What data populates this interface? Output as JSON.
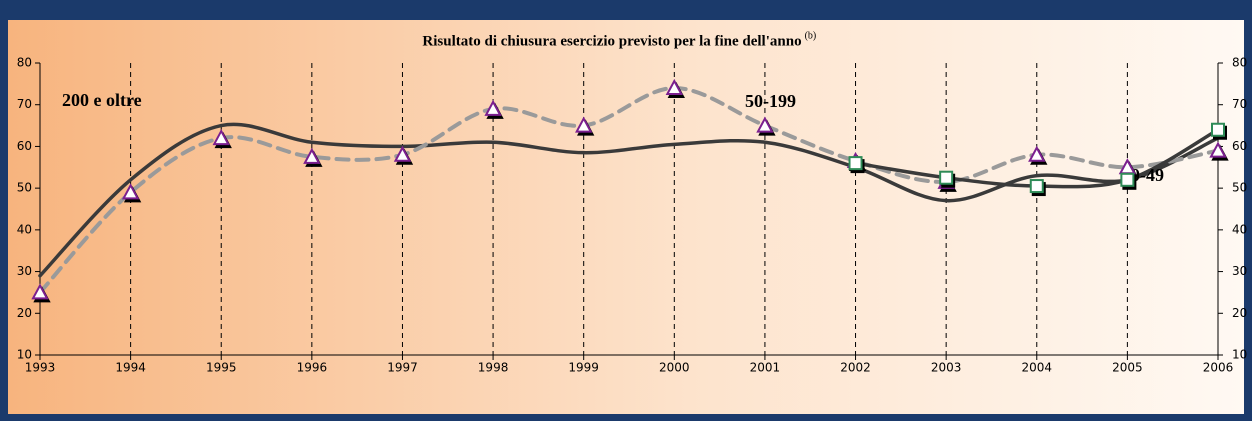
{
  "chart_data": {
    "type": "line",
    "title": "Risultato di chiusura esercizio previsto per la fine dell'anno",
    "title_note": "(b)",
    "x": [
      1993,
      1994,
      1995,
      1996,
      1997,
      1998,
      1999,
      2000,
      2001,
      2002,
      2003,
      2004,
      2005,
      2006
    ],
    "xlim": [
      1993,
      2006
    ],
    "xticks": [
      1993,
      1994,
      1995,
      1996,
      1997,
      1998,
      1999,
      2000,
      2001,
      2002,
      2003,
      2004,
      2005,
      2006
    ],
    "ylim": [
      10,
      80
    ],
    "yticks": [
      10,
      20,
      30,
      40,
      50,
      60,
      70,
      80
    ],
    "y2lim": [
      10,
      80
    ],
    "y2ticks": [
      10,
      20,
      30,
      40,
      50,
      60,
      70,
      80
    ],
    "grid": true,
    "series": [
      {
        "name": "200 e oltre",
        "color": "#3a3a3a",
        "dash": false,
        "marker": null,
        "values": [
          29,
          52,
          65,
          61,
          60,
          61,
          58.5,
          60.5,
          61,
          55,
          47,
          53,
          52,
          62
        ]
      },
      {
        "name": "50-199",
        "color": "#9a9a9a",
        "dash": true,
        "marker": "triangle",
        "marker_color": "#7b1f8f",
        "values": [
          25,
          49,
          62,
          57.5,
          58,
          69,
          65,
          74,
          65,
          56.5,
          51.5,
          58,
          55,
          59
        ]
      },
      {
        "name": "20-49",
        "color": "#3a3a3a",
        "dash": false,
        "marker": "square",
        "marker_color": "#2e8b57",
        "values": [
          null,
          null,
          null,
          null,
          null,
          null,
          null,
          null,
          null,
          56,
          52.5,
          50.5,
          52,
          64
        ]
      }
    ]
  }
}
